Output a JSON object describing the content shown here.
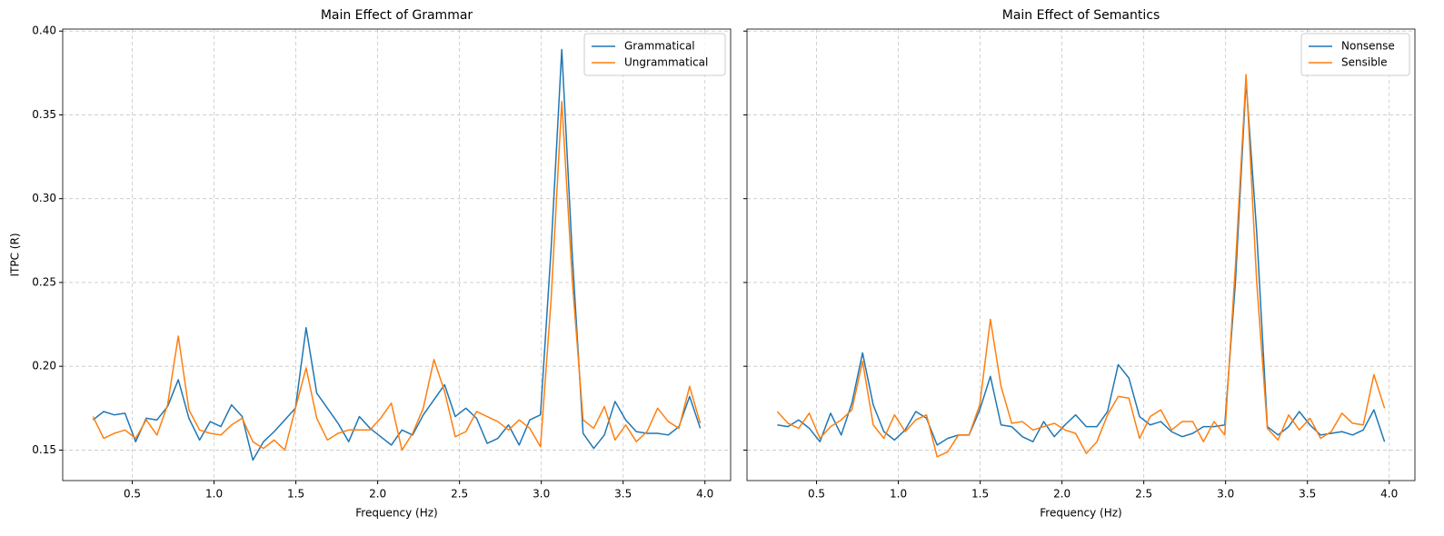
{
  "chart_data": [
    {
      "type": "line",
      "title": "Main Effect of Grammar",
      "xlabel": "Frequency (Hz)",
      "ylabel": "ITPC (R)",
      "x": [
        0.2604,
        0.3255,
        0.3906,
        0.4557,
        0.5208,
        0.5859,
        0.651,
        0.7161,
        0.7813,
        0.8464,
        0.9115,
        0.9766,
        1.0417,
        1.1068,
        1.1719,
        1.237,
        1.3021,
        1.3672,
        1.4323,
        1.4974,
        1.5625,
        1.6276,
        1.6927,
        1.7578,
        1.8229,
        1.888,
        1.9531,
        2.0182,
        2.0833,
        2.1484,
        2.2135,
        2.2786,
        2.3438,
        2.4089,
        2.474,
        2.5391,
        2.6042,
        2.6693,
        2.7344,
        2.7995,
        2.8646,
        2.9297,
        2.9948,
        3.0599,
        3.125,
        3.1901,
        3.2552,
        3.3203,
        3.3854,
        3.4505,
        3.5156,
        3.5807,
        3.6458,
        3.7109,
        3.776,
        3.8411,
        3.9063,
        3.9714
      ],
      "series": [
        {
          "name": "Grammatical",
          "color": "#1f77b4",
          "values": [
            0.168,
            0.173,
            0.171,
            0.172,
            0.155,
            0.169,
            0.168,
            0.176,
            0.192,
            0.169,
            0.156,
            0.167,
            0.164,
            0.177,
            0.17,
            0.144,
            0.155,
            0.161,
            0.168,
            0.175,
            0.223,
            0.184,
            0.175,
            0.166,
            0.155,
            0.17,
            0.163,
            0.158,
            0.153,
            0.162,
            0.159,
            0.171,
            0.18,
            0.189,
            0.17,
            0.175,
            0.169,
            0.154,
            0.157,
            0.165,
            0.153,
            0.168,
            0.171,
            0.27,
            0.389,
            0.265,
            0.16,
            0.151,
            0.159,
            0.179,
            0.168,
            0.161,
            0.16,
            0.16,
            0.159,
            0.164,
            0.182,
            0.163
          ]
        },
        {
          "name": "Ungrammatical",
          "color": "#ff7f0e",
          "values": [
            0.17,
            0.157,
            0.16,
            0.162,
            0.157,
            0.168,
            0.159,
            0.177,
            0.218,
            0.174,
            0.162,
            0.16,
            0.159,
            0.165,
            0.169,
            0.155,
            0.151,
            0.156,
            0.15,
            0.175,
            0.199,
            0.169,
            0.156,
            0.16,
            0.162,
            0.162,
            0.162,
            0.169,
            0.178,
            0.15,
            0.16,
            0.175,
            0.204,
            0.185,
            0.158,
            0.161,
            0.173,
            0.17,
            0.167,
            0.162,
            0.168,
            0.163,
            0.152,
            0.24,
            0.358,
            0.25,
            0.168,
            0.163,
            0.176,
            0.156,
            0.165,
            0.155,
            0.161,
            0.175,
            0.167,
            0.163,
            0.188,
            0.166
          ]
        }
      ],
      "xlim": [
        0.075,
        4.157
      ],
      "ylim": [
        0.1318,
        0.4012
      ],
      "xticks": [
        0.5,
        {
          "value": 1,
          "label": "1.0"
        },
        1.5,
        {
          "value": 2,
          "label": "2.0"
        },
        2.5,
        {
          "value": 3,
          "label": "3.0"
        },
        3.5,
        {
          "value": 4,
          "label": "4.0"
        }
      ],
      "yticks": [
        0.15,
        {
          "value": 0.2,
          "label": "0.20"
        },
        0.25,
        {
          "value": 0.3,
          "label": "0.30"
        },
        0.35,
        {
          "value": 0.4,
          "label": "0.40"
        }
      ],
      "grid": true,
      "legend": "upper right"
    },
    {
      "type": "line",
      "title": "Main Effect of Semantics",
      "xlabel": "Frequency (Hz)",
      "x": [
        0.2604,
        0.3255,
        0.3906,
        0.4557,
        0.5208,
        0.5859,
        0.651,
        0.7161,
        0.7813,
        0.8464,
        0.9115,
        0.9766,
        1.0417,
        1.1068,
        1.1719,
        1.237,
        1.3021,
        1.3672,
        1.4323,
        1.4974,
        1.5625,
        1.6276,
        1.6927,
        1.7578,
        1.8229,
        1.888,
        1.9531,
        2.0182,
        2.0833,
        2.1484,
        2.2135,
        2.2786,
        2.3438,
        2.4089,
        2.474,
        2.5391,
        2.6042,
        2.6693,
        2.7344,
        2.7995,
        2.8646,
        2.9297,
        2.9948,
        3.0599,
        3.125,
        3.1901,
        3.2552,
        3.3203,
        3.3854,
        3.4505,
        3.5156,
        3.5807,
        3.6458,
        3.7109,
        3.776,
        3.8411,
        3.9063,
        3.9714
      ],
      "series": [
        {
          "name": "Nonsense",
          "color": "#1f77b4",
          "values": [
            0.165,
            0.164,
            0.168,
            0.163,
            0.155,
            0.172,
            0.159,
            0.178,
            0.208,
            0.177,
            0.161,
            0.156,
            0.162,
            0.173,
            0.169,
            0.153,
            0.157,
            0.159,
            0.159,
            0.174,
            0.194,
            0.165,
            0.164,
            0.158,
            0.155,
            0.167,
            0.158,
            0.165,
            0.171,
            0.164,
            0.164,
            0.173,
            0.201,
            0.193,
            0.17,
            0.165,
            0.167,
            0.161,
            0.158,
            0.16,
            0.164,
            0.164,
            0.165,
            0.25,
            0.37,
            0.28,
            0.164,
            0.159,
            0.164,
            0.173,
            0.165,
            0.159,
            0.16,
            0.161,
            0.159,
            0.162,
            0.174,
            0.155
          ]
        },
        {
          "name": "Sensible",
          "color": "#ff7f0e",
          "values": [
            0.173,
            0.166,
            0.163,
            0.172,
            0.157,
            0.164,
            0.168,
            0.174,
            0.203,
            0.165,
            0.157,
            0.171,
            0.161,
            0.168,
            0.171,
            0.146,
            0.149,
            0.159,
            0.159,
            0.177,
            0.228,
            0.188,
            0.166,
            0.167,
            0.162,
            0.164,
            0.166,
            0.162,
            0.16,
            0.148,
            0.155,
            0.171,
            0.182,
            0.181,
            0.157,
            0.17,
            0.174,
            0.162,
            0.167,
            0.167,
            0.155,
            0.167,
            0.159,
            0.26,
            0.374,
            0.25,
            0.163,
            0.156,
            0.171,
            0.162,
            0.169,
            0.157,
            0.161,
            0.172,
            0.166,
            0.165,
            0.195,
            0.175
          ]
        }
      ],
      "xlim": [
        0.075,
        4.157
      ],
      "ylim": [
        0.1318,
        0.4012
      ],
      "xticks": [
        0.5,
        {
          "value": 1,
          "label": "1.0"
        },
        1.5,
        {
          "value": 2,
          "label": "2.0"
        },
        2.5,
        {
          "value": 3,
          "label": "3.0"
        },
        3.5,
        {
          "value": 4,
          "label": "4.0"
        }
      ],
      "yticks": [
        0.15,
        0.2,
        0.25,
        0.3,
        0.35,
        0.4
      ],
      "ytick_labels": false,
      "grid": true,
      "legend": "upper right"
    }
  ]
}
